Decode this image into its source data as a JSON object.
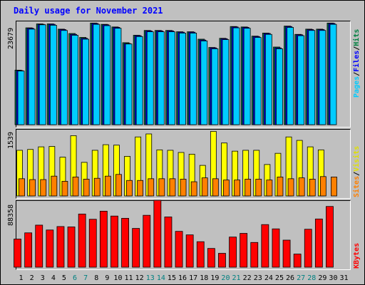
{
  "title": "Daily usage for November 2021",
  "chart_data": [
    {
      "type": "bar",
      "categories": [
        "1",
        "2",
        "3",
        "4",
        "5",
        "6",
        "7",
        "8",
        "9",
        "10",
        "11",
        "12",
        "13",
        "14",
        "15",
        "16",
        "17",
        "18",
        "19",
        "20",
        "21",
        "22",
        "23",
        "24",
        "25",
        "26",
        "27",
        "28",
        "29",
        "30",
        "31"
      ],
      "weekend_days": [
        "6",
        "7",
        "13",
        "14",
        "20",
        "21",
        "27",
        "28"
      ],
      "ymax_label": "23679",
      "ylim": [
        0,
        23679
      ],
      "series": [
        {
          "name": "Hits",
          "color": "#00805a",
          "values": [
            12500,
            22200,
            23100,
            23100,
            21900,
            20900,
            20000,
            23300,
            23000,
            22400,
            18800,
            20500,
            21600,
            21600,
            21600,
            21300,
            21300,
            19600,
            17700,
            19800,
            22500,
            22400,
            20300,
            21000,
            17800,
            22600,
            20700,
            21900,
            21900,
            23300,
            null
          ]
        },
        {
          "name": "Files",
          "color": "#0000ff",
          "values": [
            12400,
            22100,
            23000,
            23000,
            21800,
            20700,
            19800,
            23200,
            22900,
            22300,
            18600,
            20400,
            21500,
            21500,
            21500,
            21200,
            21200,
            19400,
            17600,
            19700,
            22400,
            22300,
            20200,
            20900,
            17600,
            22500,
            20600,
            21800,
            21800,
            23200,
            null
          ]
        },
        {
          "name": "Pages",
          "color": "#00ccff",
          "values": [
            12300,
            21900,
            22900,
            22800,
            21600,
            20500,
            19600,
            23000,
            22700,
            22100,
            18500,
            20200,
            21300,
            21300,
            21300,
            21000,
            21000,
            19200,
            17400,
            19500,
            22200,
            22100,
            20000,
            20700,
            17400,
            22300,
            20400,
            21600,
            21600,
            23000,
            null
          ]
        }
      ]
    },
    {
      "type": "bar",
      "categories": [
        "1",
        "2",
        "3",
        "4",
        "5",
        "6",
        "7",
        "8",
        "9",
        "10",
        "11",
        "12",
        "13",
        "14",
        "15",
        "16",
        "17",
        "18",
        "19",
        "20",
        "21",
        "22",
        "23",
        "24",
        "25",
        "26",
        "27",
        "28",
        "29",
        "30",
        "31"
      ],
      "ymax_label": "1539",
      "ylim": [
        0,
        1539
      ],
      "series": [
        {
          "name": "Visits",
          "color": "#ffff00",
          "values": [
            1060,
            1080,
            1140,
            1150,
            900,
            1400,
            780,
            1060,
            1190,
            1180,
            920,
            1370,
            1440,
            1070,
            1060,
            1010,
            970,
            710,
            1500,
            1230,
            1040,
            1060,
            1060,
            730,
            990,
            1370,
            1290,
            1140,
            1070,
            null,
            null
          ]
        },
        {
          "name": "Sites",
          "color": "#ff8000",
          "values": [
            400,
            380,
            380,
            460,
            340,
            440,
            390,
            410,
            460,
            500,
            360,
            360,
            400,
            400,
            400,
            390,
            330,
            420,
            400,
            370,
            370,
            390,
            390,
            370,
            440,
            400,
            420,
            390,
            450,
            440,
            null
          ]
        }
      ]
    },
    {
      "type": "bar",
      "categories": [
        "1",
        "2",
        "3",
        "4",
        "5",
        "6",
        "7",
        "8",
        "9",
        "10",
        "11",
        "12",
        "13",
        "14",
        "15",
        "16",
        "17",
        "18",
        "19",
        "20",
        "21",
        "22",
        "23",
        "24",
        "25",
        "26",
        "27",
        "28",
        "29",
        "30",
        "31"
      ],
      "ymax_label": "88358",
      "ylim": [
        0,
        88358
      ],
      "series": [
        {
          "name": "KBytes",
          "color": "#ff0000",
          "values": [
            37500,
            45800,
            56100,
            49600,
            54200,
            53700,
            70900,
            63900,
            74700,
            68200,
            65200,
            51700,
            69200,
            89100,
            67000,
            47800,
            43100,
            34000,
            25000,
            18500,
            40200,
            45100,
            33000,
            56800,
            51100,
            36100,
            17500,
            50600,
            64300,
            81000,
            null
          ]
        }
      ]
    }
  ],
  "legend": {
    "panel1": [
      "Pages",
      "/",
      "Files",
      "/",
      "Hits"
    ],
    "panel2": [
      "Sites",
      "/",
      "Visits"
    ],
    "panel3": [
      "KBytes"
    ]
  }
}
